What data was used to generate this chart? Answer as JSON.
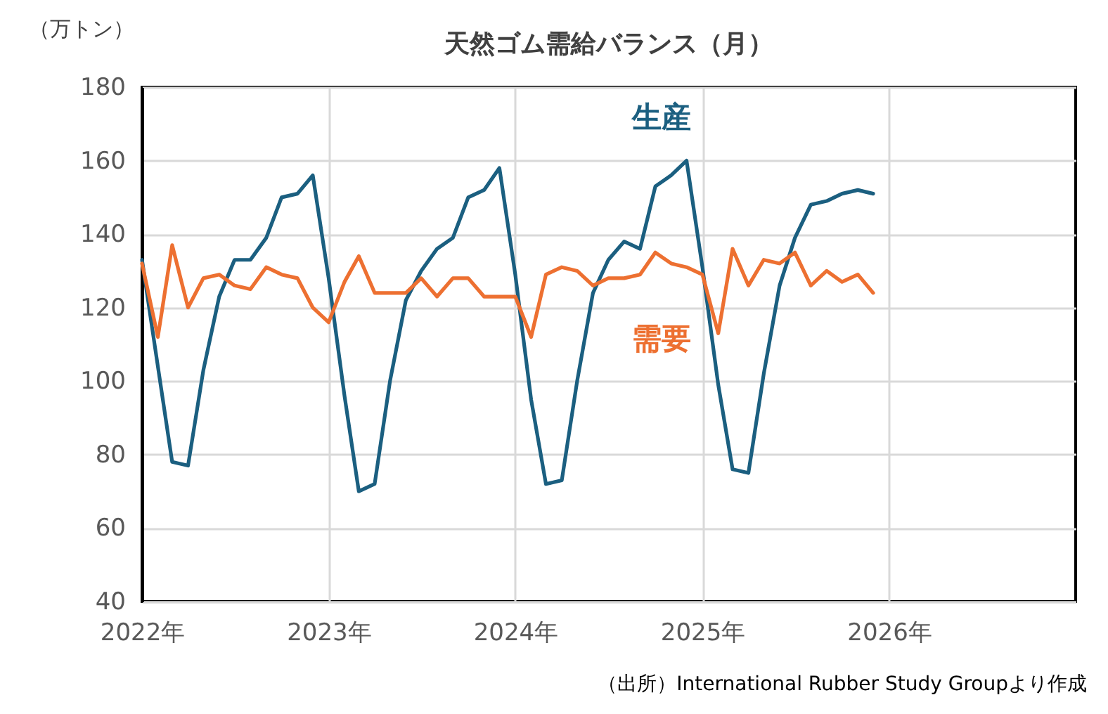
{
  "chart_data": {
    "type": "line",
    "title": "天然ゴム需給バランス（月）",
    "ylabel": "（万トン）",
    "annotations": [
      "（出所）International Rubber Study Groupより作成"
    ],
    "x": [
      "2022-01",
      "2022-02",
      "2022-03",
      "2022-04",
      "2022-05",
      "2022-06",
      "2022-07",
      "2022-08",
      "2022-09",
      "2022-10",
      "2022-11",
      "2022-12",
      "2023-01",
      "2023-02",
      "2023-03",
      "2023-04",
      "2023-05",
      "2023-06",
      "2023-07",
      "2023-08",
      "2023-09",
      "2023-10",
      "2023-11",
      "2023-12",
      "2024-01",
      "2024-02",
      "2024-03",
      "2024-04",
      "2024-05",
      "2024-06",
      "2024-07",
      "2024-08",
      "2024-09",
      "2024-10",
      "2024-11",
      "2024-12",
      "2025-01",
      "2025-02",
      "2025-03",
      "2025-04",
      "2025-05",
      "2025-06",
      "2025-07",
      "2025-08",
      "2025-09",
      "2025-10",
      "2025-11",
      "2025-12"
    ],
    "series": [
      {
        "name": "生産",
        "color": "#1b5f80",
        "values": [
          133,
          104,
          78,
          77,
          103,
          123,
          133,
          133,
          139,
          150,
          151,
          156,
          128,
          96,
          70,
          72,
          100,
          122,
          130,
          136,
          139,
          150,
          152,
          158,
          129,
          95,
          72,
          73,
          100,
          124,
          133,
          138,
          136,
          153,
          156,
          160,
          131,
          99,
          76,
          75,
          102,
          126,
          139,
          148,
          149,
          151,
          152,
          151
        ]
      },
      {
        "name": "需要",
        "color": "#ed7031",
        "values": [
          132,
          112,
          137,
          120,
          128,
          129,
          126,
          125,
          131,
          129,
          128,
          120,
          116,
          127,
          134,
          124,
          124,
          124,
          128,
          123,
          128,
          128,
          123,
          123,
          123,
          112,
          129,
          131,
          130,
          126,
          128,
          128,
          129,
          135,
          132,
          131,
          129,
          113,
          136,
          126,
          133,
          132,
          135,
          126,
          130,
          127,
          129,
          124
        ]
      }
    ],
    "xlim": [
      "2022-01",
      "2027-01"
    ],
    "xticks": [
      {
        "value": "2022-01",
        "label": "2022年"
      },
      {
        "value": "2023-01",
        "label": "2023年"
      },
      {
        "value": "2024-01",
        "label": "2024年"
      },
      {
        "value": "2025-01",
        "label": "2025年"
      },
      {
        "value": "2026-01",
        "label": "2026年"
      }
    ],
    "ylim": [
      40,
      180
    ],
    "yticks": [
      40,
      60,
      80,
      100,
      120,
      140,
      160,
      180
    ],
    "grid": true,
    "legend": false,
    "marker": "none",
    "line_style": "solid"
  }
}
